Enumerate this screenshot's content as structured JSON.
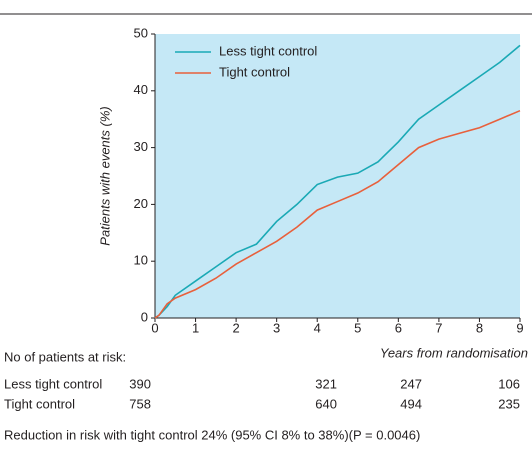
{
  "chart_data": {
    "type": "line",
    "y_label": "Patients with events (%)",
    "x_label": "Years from randomisation",
    "x": [
      0,
      0.1,
      0.3,
      0.5,
      1,
      1.5,
      2,
      2.5,
      3,
      3.5,
      4,
      4.5,
      5,
      5.5,
      6,
      6.5,
      7,
      7.5,
      8,
      8.5,
      9
    ],
    "series": [
      {
        "name": "Less tight control",
        "color": "#1aa9b5",
        "values": [
          0,
          0.5,
          2,
          4,
          6.5,
          9,
          11.5,
          13,
          17,
          20,
          23.5,
          24.8,
          25.5,
          27.5,
          31,
          35,
          37.5,
          40,
          42.5,
          45,
          48
        ]
      },
      {
        "name": "Tight control",
        "color": "#e8603c",
        "values": [
          0,
          0.5,
          2.5,
          3.5,
          5,
          7,
          9.5,
          11.5,
          13.5,
          16,
          19,
          20.5,
          22,
          24,
          27,
          30,
          31.5,
          32.5,
          33.5,
          35,
          36.5
        ]
      }
    ],
    "xlim": [
      0,
      9
    ],
    "ylim": [
      0,
      50
    ],
    "xticks": [
      0,
      1,
      2,
      3,
      4,
      5,
      6,
      7,
      8,
      9
    ],
    "yticks": [
      0,
      10,
      20,
      30,
      40,
      50
    ],
    "background": "#c5e8f6",
    "legend": "upper left"
  },
  "risk_table": {
    "title": "No of patients at risk:",
    "rows": [
      {
        "label": "Less tight control",
        "values": [
          "390",
          "321",
          "247",
          "106"
        ]
      },
      {
        "label": "Tight control",
        "values": [
          "758",
          "640",
          "494",
          "235"
        ]
      }
    ]
  },
  "footnote": "Reduction in risk with tight control 24% (95% CI 8% to 38%)(P = 0.0046)"
}
